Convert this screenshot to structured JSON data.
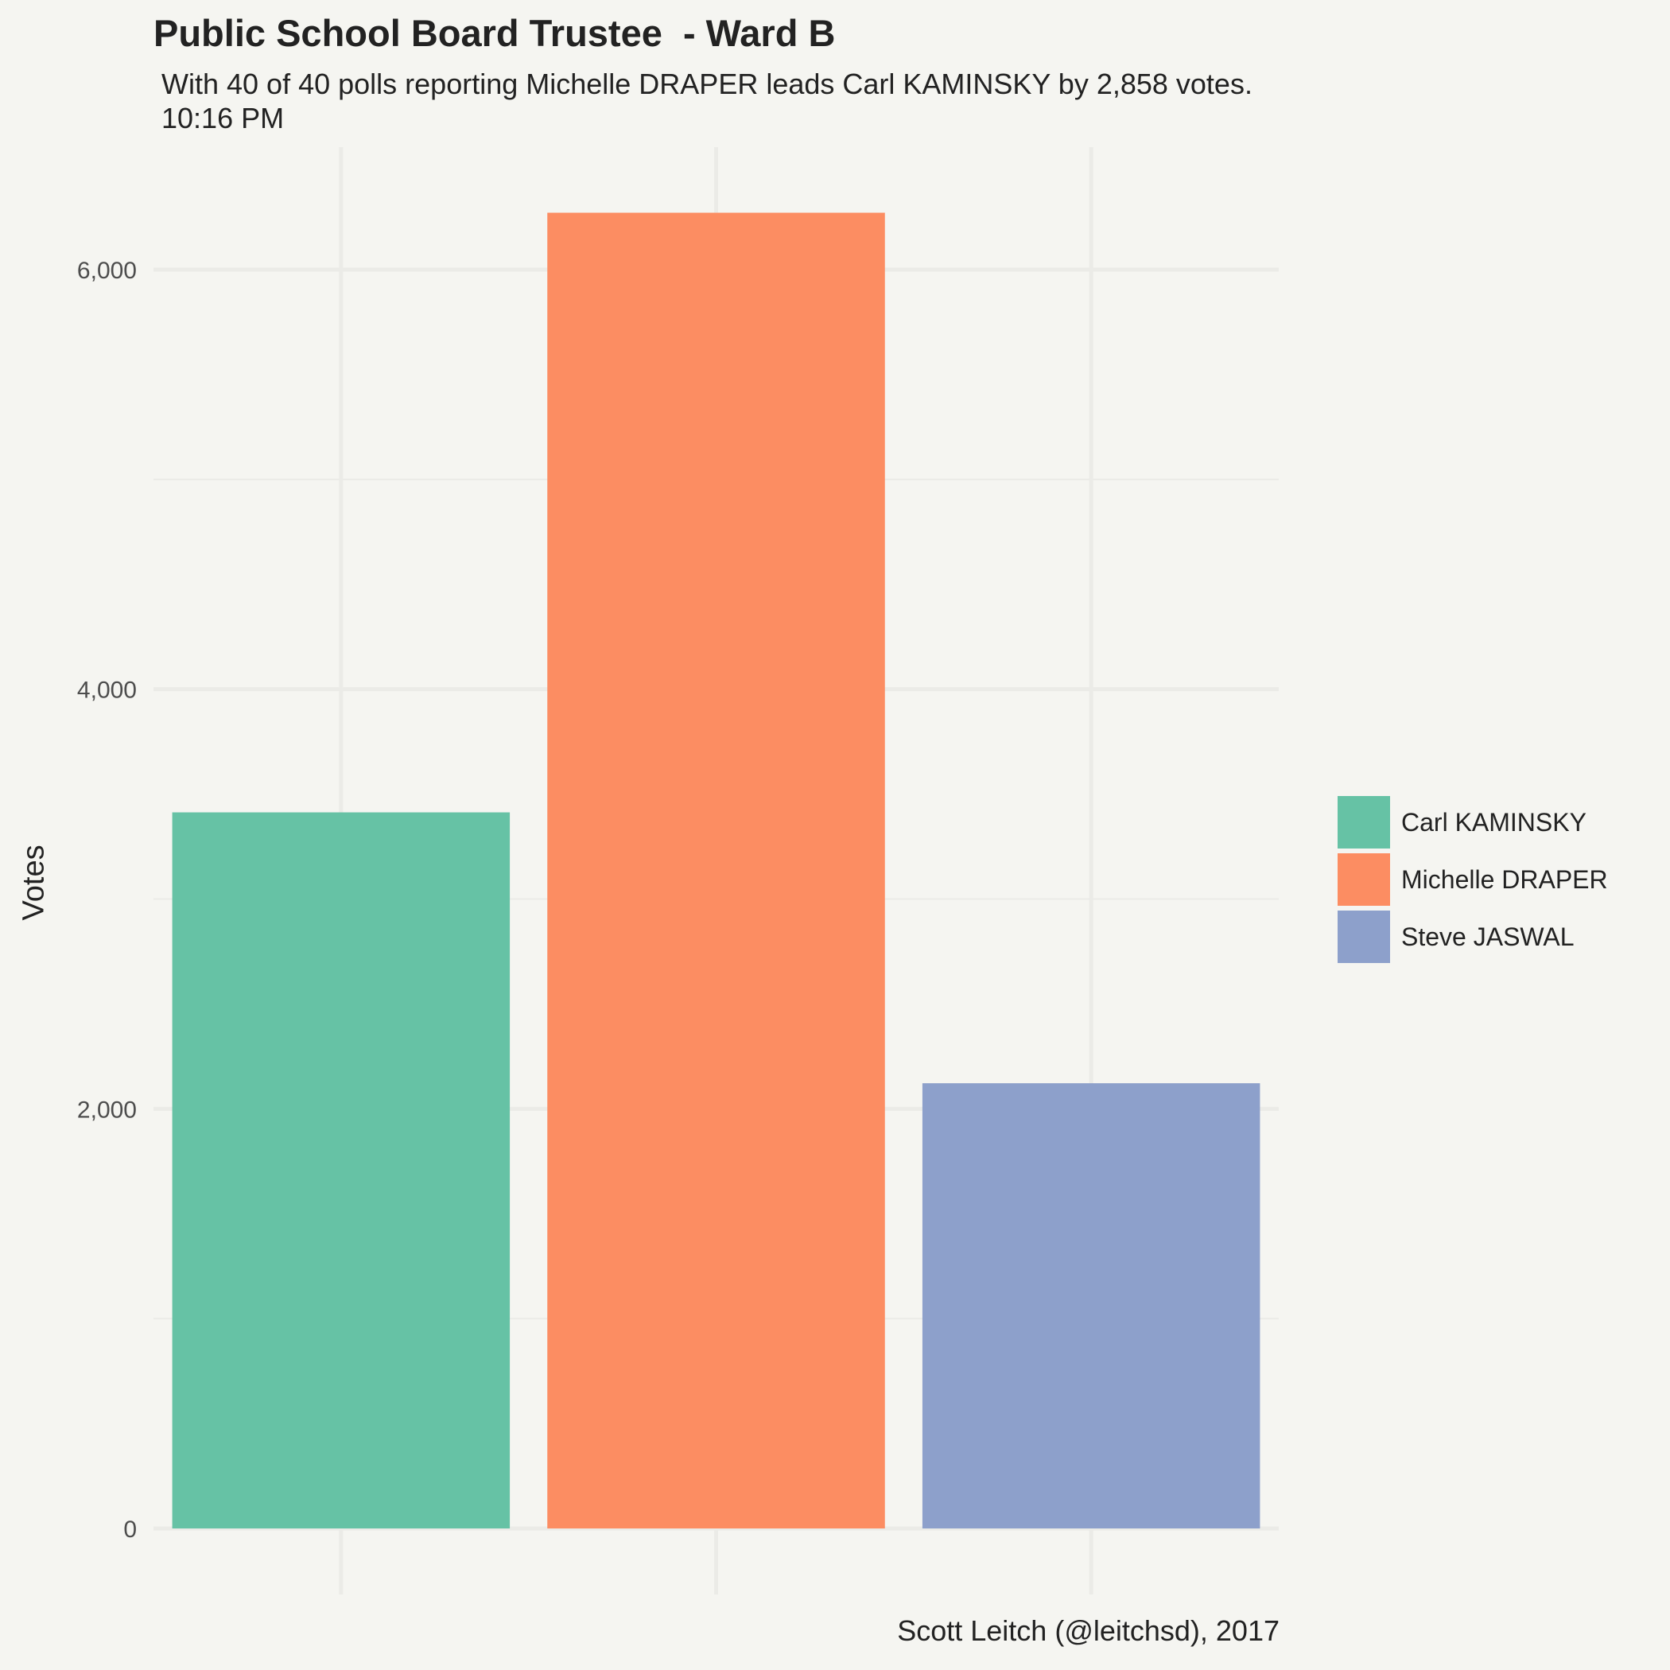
{
  "chart_data": {
    "type": "bar",
    "title": "Public School Board Trustee  - Ward B",
    "subtitle_lines": [
      "With 40 of 40 polls reporting Michelle DRAPER leads Carl KAMINSKY by 2,858 votes.",
      "10:16 PM"
    ],
    "caption": "Scott Leitch (@leitchsd), 2017",
    "xlabel": "",
    "ylabel": "Votes",
    "categories": [
      "Carl KAMINSKY",
      "Michelle DRAPER",
      "Steve JASWAL"
    ],
    "values": [
      3413,
      6271,
      2122
    ],
    "colors": [
      "#66c2a5",
      "#fc8d62",
      "#8da0cb"
    ],
    "ylim": [
      0,
      6600
    ],
    "yticks": [
      0,
      2000,
      4000,
      6000
    ],
    "ytick_labels": [
      "0",
      "2,000",
      "4,000",
      "6,000"
    ],
    "grid": true,
    "legend": {
      "position": "right",
      "entries": [
        "Carl KAMINSKY",
        "Michelle DRAPER",
        "Steve JASWAL"
      ]
    }
  }
}
